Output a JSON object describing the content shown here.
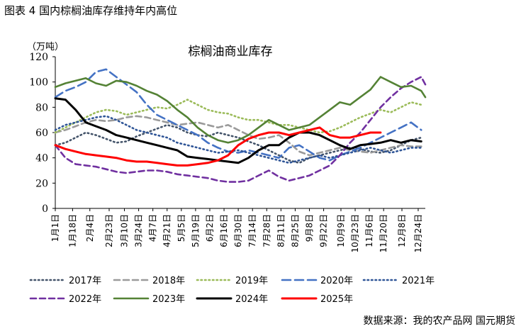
{
  "page": {
    "title": "图表 4 国内棕榈油库存维持年内高位",
    "source": "数据来源：我的农产品网 国元期货"
  },
  "chart_data": {
    "type": "line",
    "title": "棕榈油商业库存",
    "ylabel": "（万吨）",
    "xlabel": "",
    "ylim": [
      0,
      120
    ],
    "yticks": [
      0,
      20,
      40,
      60,
      80,
      100,
      120
    ],
    "x_range_days": [
      0,
      364
    ],
    "x_tick_labels": [
      "1月1日",
      "1月18日",
      "2月4日",
      "2月23日",
      "3月10日",
      "3月24日",
      "4月7日",
      "4月21日",
      "5月5日",
      "5月19日",
      "6月2日",
      "6月16日",
      "6月30日",
      "7月14日",
      "7月28日",
      "8月11日",
      "8月25日",
      "9月8日",
      "9月22日",
      "10月9日",
      "10月23日",
      "11月6日",
      "11月20日",
      "12月8日",
      "12月24日"
    ],
    "x_tick_days": [
      0,
      17,
      34,
      53,
      68,
      82,
      96,
      110,
      124,
      138,
      152,
      166,
      180,
      194,
      208,
      222,
      236,
      250,
      264,
      281,
      295,
      309,
      323,
      341,
      357
    ],
    "x_format": "day-of-year",
    "grid": false,
    "legend_position": "bottom",
    "series": [
      {
        "name": "2017年",
        "color": "#44546A",
        "dash": "dot",
        "width": 2.6,
        "x": [
          0,
          10,
          20,
          30,
          40,
          50,
          60,
          70,
          80,
          90,
          100,
          110,
          120,
          130,
          140,
          150,
          160,
          170,
          180,
          190,
          200,
          210,
          220,
          230,
          240,
          250,
          260,
          270,
          280,
          290,
          300,
          310,
          320,
          330,
          340,
          350,
          360
        ],
        "y": [
          50,
          52,
          56,
          60,
          58,
          55,
          52,
          53,
          57,
          60,
          63,
          66,
          64,
          60,
          58,
          57,
          60,
          58,
          56,
          53,
          50,
          46,
          42,
          38,
          36,
          40,
          42,
          44,
          46,
          48,
          47,
          45,
          44,
          46,
          50,
          54,
          56
        ]
      },
      {
        "name": "2018年",
        "color": "#9A9A9A",
        "dash": "dash",
        "width": 2.6,
        "x": [
          0,
          10,
          20,
          30,
          40,
          50,
          60,
          70,
          80,
          90,
          100,
          110,
          120,
          130,
          140,
          150,
          160,
          170,
          180,
          190,
          200,
          210,
          220,
          230,
          240,
          250,
          260,
          270,
          280,
          290,
          300,
          310,
          320,
          330,
          340,
          350,
          360
        ],
        "y": [
          60,
          62,
          65,
          68,
          70,
          69,
          70,
          72,
          73,
          72,
          70,
          68,
          66,
          67,
          68,
          66,
          64,
          66,
          62,
          58,
          55,
          56,
          58,
          52,
          45,
          42,
          44,
          46,
          48,
          46,
          45,
          44,
          46,
          48,
          50,
          49,
          49
        ]
      },
      {
        "name": "2019年",
        "color": "#9BBB59",
        "dash": "dot",
        "width": 2.6,
        "x": [
          0,
          10,
          20,
          30,
          40,
          50,
          60,
          70,
          80,
          90,
          100,
          110,
          120,
          130,
          140,
          150,
          160,
          170,
          180,
          190,
          200,
          210,
          220,
          230,
          240,
          250,
          260,
          270,
          280,
          290,
          300,
          310,
          320,
          330,
          340,
          350,
          360
        ],
        "y": [
          60,
          64,
          68,
          72,
          76,
          78,
          77,
          74,
          76,
          78,
          80,
          79,
          82,
          86,
          82,
          78,
          76,
          75,
          72,
          70,
          70,
          68,
          66,
          66,
          64,
          62,
          60,
          61,
          64,
          68,
          72,
          75,
          78,
          76,
          80,
          84,
          82
        ]
      },
      {
        "name": "2020年",
        "color": "#4472C4",
        "dash": "longdash",
        "width": 2.6,
        "x": [
          0,
          10,
          20,
          30,
          40,
          50,
          60,
          70,
          80,
          90,
          100,
          110,
          120,
          130,
          140,
          150,
          160,
          170,
          180,
          190,
          200,
          210,
          220,
          230,
          240,
          250,
          260,
          270,
          280,
          290,
          300,
          310,
          320,
          330,
          340,
          350,
          360
        ],
        "y": [
          88,
          93,
          96,
          100,
          108,
          110,
          104,
          98,
          92,
          82,
          74,
          70,
          66,
          62,
          58,
          52,
          48,
          45,
          44,
          46,
          44,
          42,
          40,
          48,
          50,
          45,
          40,
          38,
          42,
          45,
          48,
          52,
          56,
          60,
          64,
          68,
          62
        ]
      },
      {
        "name": "2021年",
        "color": "#2F5597",
        "dash": "dot",
        "width": 2.6,
        "x": [
          0,
          10,
          20,
          30,
          40,
          50,
          60,
          70,
          80,
          90,
          100,
          110,
          120,
          130,
          140,
          150,
          160,
          170,
          180,
          190,
          200,
          210,
          220,
          230,
          240,
          250,
          260,
          270,
          280,
          290,
          300,
          310,
          320,
          330,
          340,
          350,
          360
        ],
        "y": [
          62,
          66,
          68,
          70,
          72,
          73,
          70,
          66,
          62,
          60,
          58,
          56,
          52,
          50,
          48,
          46,
          44,
          45,
          46,
          44,
          42,
          40,
          38,
          36,
          38,
          40,
          42,
          40,
          42,
          44,
          46,
          48,
          46,
          44,
          46,
          48,
          48
        ]
      },
      {
        "name": "2022年",
        "color": "#7030A0",
        "dash": "dash",
        "width": 2.6,
        "x": [
          0,
          10,
          20,
          30,
          40,
          50,
          60,
          70,
          80,
          90,
          100,
          110,
          120,
          130,
          140,
          150,
          160,
          170,
          180,
          190,
          200,
          210,
          220,
          230,
          240,
          250,
          260,
          270,
          280,
          290,
          300,
          310,
          320,
          330,
          340,
          350,
          360,
          364
        ],
        "y": [
          50,
          40,
          35,
          34,
          33,
          31,
          29,
          28,
          29,
          30,
          30,
          29,
          27,
          26,
          25,
          24,
          22,
          21,
          21,
          22,
          26,
          30,
          25,
          22,
          24,
          26,
          30,
          34,
          42,
          52,
          60,
          70,
          80,
          88,
          95,
          100,
          104,
          98
        ]
      },
      {
        "name": "2023年",
        "color": "#548235",
        "dash": "solid",
        "width": 2.6,
        "x": [
          0,
          10,
          20,
          30,
          40,
          50,
          60,
          70,
          80,
          90,
          100,
          110,
          120,
          130,
          140,
          150,
          160,
          170,
          180,
          190,
          200,
          210,
          220,
          230,
          240,
          250,
          260,
          270,
          280,
          290,
          300,
          310,
          320,
          330,
          340,
          350,
          360,
          364
        ],
        "y": [
          96,
          99,
          101,
          103,
          99,
          97,
          101,
          100,
          97,
          93,
          90,
          85,
          78,
          72,
          64,
          58,
          54,
          52,
          54,
          58,
          64,
          70,
          66,
          62,
          64,
          66,
          72,
          78,
          84,
          82,
          88,
          94,
          104,
          100,
          96,
          97,
          93,
          88
        ]
      },
      {
        "name": "2024年",
        "color": "#000000",
        "dash": "solid",
        "width": 3.0,
        "x": [
          0,
          10,
          20,
          30,
          40,
          50,
          60,
          70,
          80,
          90,
          100,
          110,
          120,
          130,
          140,
          150,
          160,
          170,
          180,
          190,
          200,
          210,
          220,
          230,
          240,
          250,
          260,
          270,
          280,
          290,
          300,
          310,
          320,
          330,
          340,
          350,
          360
        ],
        "y": [
          87,
          86,
          78,
          68,
          65,
          62,
          58,
          56,
          54,
          52,
          50,
          48,
          46,
          41,
          40,
          39,
          38,
          37,
          36,
          40,
          46,
          50,
          50,
          56,
          60,
          60,
          58,
          54,
          50,
          47,
          50,
          51,
          52,
          54,
          52,
          54,
          53
        ]
      },
      {
        "name": "2025年",
        "color": "#FF0000",
        "dash": "solid",
        "width": 3.0,
        "x": [
          0,
          10,
          20,
          30,
          40,
          50,
          60,
          70,
          80,
          90,
          100,
          110,
          120,
          130,
          140,
          150,
          160,
          170,
          180,
          190,
          200,
          210,
          220,
          230,
          240,
          250,
          260,
          270,
          280,
          290,
          300,
          310,
          320
        ],
        "y": [
          50,
          47,
          45,
          43,
          42,
          41,
          40,
          38,
          37,
          37,
          36,
          35,
          34,
          34,
          35,
          36,
          38,
          42,
          50,
          55,
          58,
          60,
          60,
          58,
          60,
          62,
          64,
          58,
          56,
          56,
          58,
          60,
          60
        ]
      }
    ]
  }
}
